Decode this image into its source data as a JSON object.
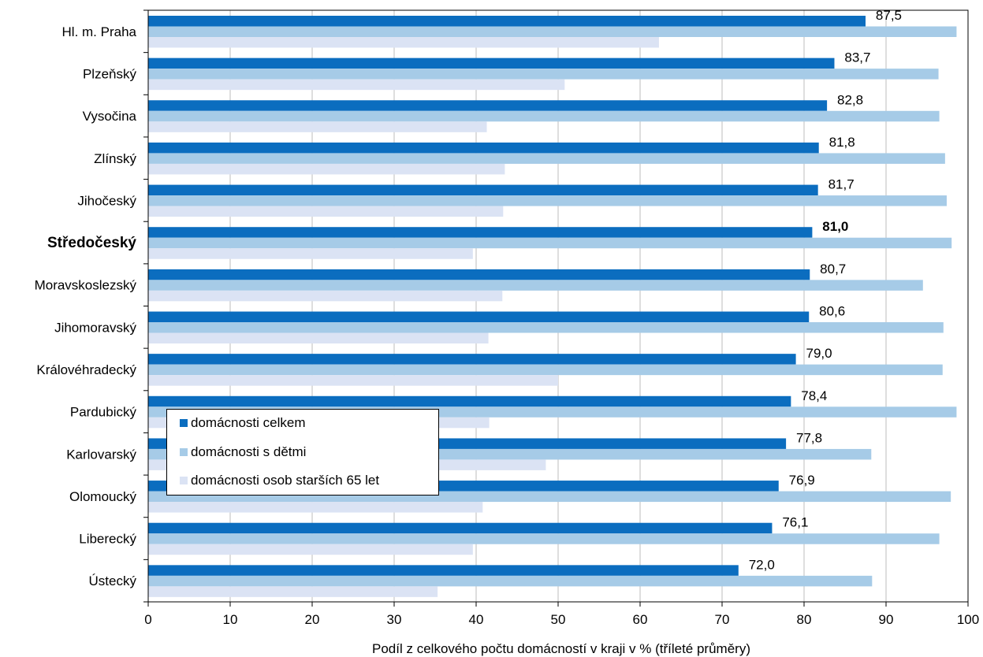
{
  "chart_data": {
    "type": "bar",
    "orientation": "horizontal",
    "categories": [
      "Hl. m. Praha",
      "Plzeňský",
      "Vysočina",
      "Zlínský",
      "Jihočeský",
      "Středočeský",
      "Moravskoslezský",
      "Jihomoravský",
      "Královéhradecký",
      "Pardubický",
      "Karlovarský",
      "Olomoucký",
      "Liberecký",
      "Ústecký"
    ],
    "highlight_category": "Středočeský",
    "series": [
      {
        "name": "domácnosti celkem",
        "color": "#0b6dbf",
        "values": [
          87.5,
          83.7,
          82.8,
          81.8,
          81.7,
          81.0,
          80.7,
          80.6,
          79.0,
          78.4,
          77.8,
          76.9,
          76.1,
          72.0
        ]
      },
      {
        "name": "domácnosti s dětmi",
        "color": "#a6cbe7",
        "values": [
          98.6,
          96.4,
          96.5,
          97.2,
          97.4,
          98.0,
          94.5,
          97.0,
          96.9,
          98.6,
          88.2,
          97.9,
          96.5,
          88.3
        ]
      },
      {
        "name": "domácnosti osob starších 65 let",
        "color": "#dbe3f4",
        "values": [
          62.3,
          50.8,
          41.3,
          43.5,
          43.3,
          39.6,
          43.2,
          41.5,
          50.0,
          41.6,
          48.5,
          40.8,
          39.6,
          35.3
        ]
      }
    ],
    "data_labels": [
      "87,5",
      "83,7",
      "82,8",
      "81,8",
      "81,7",
      "81,0",
      "80,7",
      "80,6",
      "79,0",
      "78,4",
      "77,8",
      "76,9",
      "76,1",
      "72,0"
    ],
    "xlim": [
      0,
      100
    ],
    "xticks": [
      0,
      10,
      20,
      30,
      40,
      50,
      60,
      70,
      80,
      90,
      100
    ],
    "xtick_labels": [
      "0",
      "10",
      "20",
      "30",
      "40",
      "50",
      "60",
      "70",
      "80",
      "90",
      "100"
    ],
    "xlabel": "Podíl z celkového počtu domácností v kraji v % (tříleté průměry)",
    "grid": "vertical",
    "legend_position": "lower-left"
  }
}
